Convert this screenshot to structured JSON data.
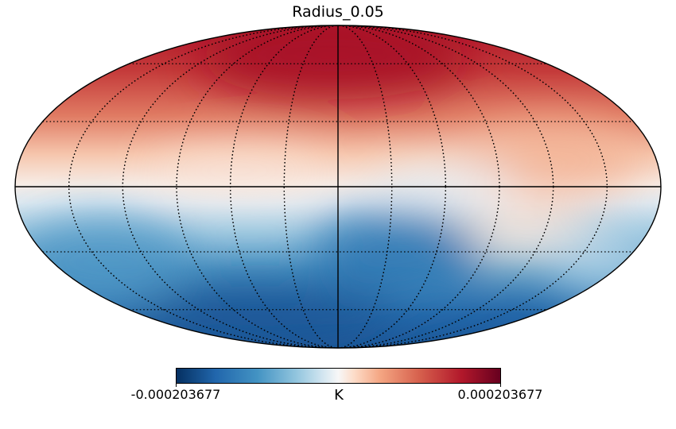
{
  "title": "Radius_0.05",
  "projection": "mollweide",
  "colormap": "RdBu_r",
  "colorbar": {
    "min_label": "-0.000203677",
    "max_label": "0.000203677",
    "unit": "K",
    "min": -0.000203677,
    "max": 0.000203677
  },
  "graticule": {
    "style": "dotted",
    "meridian_step_deg": 30,
    "parallel_step_deg": 30
  }
}
